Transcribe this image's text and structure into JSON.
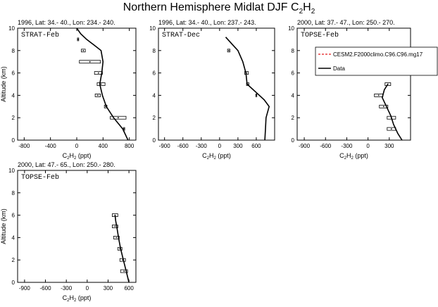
{
  "figure": {
    "title_main": "Northern Hemisphere Midlat DJF C",
    "title_sub1": "2",
    "title_mid": "H",
    "title_sub2": "2"
  },
  "legend": {
    "entries": [
      {
        "label": "CESM2.F2000climo.C96.C96.mg17",
        "color": "#e31a1c",
        "style": "dashed"
      },
      {
        "label": "Data",
        "color": "#000000",
        "style": "solid"
      }
    ]
  },
  "chart_data": [
    {
      "type": "line",
      "header": "1996, Lat: 34.- 40., Lon: 234.- 240.",
      "tag": "STRAT-Feb",
      "xlabel": "C2H2 (ppt)",
      "ylabel": "Altitude (km)",
      "xlim": [
        -900,
        900
      ],
      "ylim": [
        0,
        10
      ],
      "xticks": [
        -800,
        -400,
        0,
        400,
        800
      ],
      "yticks": [
        0,
        2,
        4,
        6,
        8,
        10
      ],
      "model": {
        "x": [
          780,
          700,
          560,
          450,
          390,
          350,
          380,
          400,
          370,
          260,
          150,
          60,
          0
        ],
        "y": [
          0,
          1,
          2,
          3,
          4,
          5,
          6,
          7,
          8,
          8.5,
          9,
          9.5,
          10
        ]
      },
      "obs": [
        {
          "y": 9.0,
          "x": 20,
          "err": 10
        },
        {
          "y": 8.0,
          "x": 100,
          "err": 30
        },
        {
          "y": 7.0,
          "x": 200,
          "err": 160
        },
        {
          "y": 6.0,
          "x": 330,
          "err": 60
        },
        {
          "y": 5.0,
          "x": 370,
          "err": 60
        },
        {
          "y": 4.0,
          "x": 320,
          "err": 40
        },
        {
          "y": 3.0,
          "x": 440,
          "err": 20
        },
        {
          "y": 2.0,
          "x": 630,
          "err": 120
        },
        {
          "y": 1.0,
          "x": 720,
          "err": 10
        }
      ]
    },
    {
      "type": "line",
      "header": "1996, Lat: 34.- 40., Lon: 237.- 243.",
      "tag": "STRAT-Dec",
      "xlabel": "C2H2 (ppt)",
      "ylabel": "",
      "xlim": [
        -1000,
        900
      ],
      "ylim": [
        0,
        10
      ],
      "xticks": [
        -900,
        -600,
        -300,
        0,
        300,
        600
      ],
      "yticks": [
        0,
        2,
        4,
        6,
        8,
        10
      ],
      "model": {
        "x": [
          740,
          750,
          760,
          810,
          730,
          610,
          450,
          430,
          380,
          300,
          200,
          100
        ],
        "y": [
          0,
          1,
          2,
          3,
          3.6,
          4.2,
          5,
          6,
          7,
          8,
          8.6,
          9.2
        ]
      },
      "obs": [
        {
          "y": 8.0,
          "x": 150,
          "err": 20
        },
        {
          "y": 6.0,
          "x": 440,
          "err": 30
        },
        {
          "y": 5.0,
          "x": 460,
          "err": 20
        },
        {
          "y": 4.0,
          "x": 600,
          "err": 8
        }
      ]
    },
    {
      "type": "line",
      "header": "2000, Lat: 37.- 47., Lon: 250.- 270.",
      "tag": "TOPSE-Feb",
      "xlabel": "C2H2 (ppt)",
      "ylabel": "",
      "xlim": [
        -1000,
        600
      ],
      "ylim": [
        0,
        10
      ],
      "xticks": [
        -900,
        -600,
        -300,
        0,
        300
      ],
      "yticks": [
        0,
        2,
        4,
        6,
        8,
        10
      ],
      "model": {
        "x": [
          480,
          420,
          360,
          320,
          260,
          200,
          230,
          280
        ],
        "y": [
          0,
          0.6,
          1.4,
          2.2,
          3.0,
          3.8,
          4.5,
          5.0
        ]
      },
      "obs": [
        {
          "y": 5.0,
          "x": 280,
          "err": 40
        },
        {
          "y": 4.0,
          "x": 150,
          "err": 60
        },
        {
          "y": 3.0,
          "x": 220,
          "err": 60
        },
        {
          "y": 2.0,
          "x": 330,
          "err": 60
        },
        {
          "y": 1.0,
          "x": 330,
          "err": 60
        }
      ]
    },
    {
      "type": "line",
      "header": "2000, Lat: 47.- 65., Lon: 250.- 280.",
      "tag": "TOPSE-Feb",
      "xlabel": "C2H2 (ppt)",
      "ylabel": "Altitude (km)",
      "xlim": [
        -1000,
        700
      ],
      "ylim": [
        0,
        10
      ],
      "xticks": [
        -900,
        -600,
        -300,
        0,
        300,
        600
      ],
      "yticks": [
        0,
        2,
        4,
        6,
        8,
        10
      ],
      "model": {
        "x": [
          600,
          560,
          520,
          480,
          450,
          430,
          410,
          400
        ],
        "y": [
          0,
          1,
          2,
          3,
          4,
          4.8,
          5.5,
          6.0
        ]
      },
      "obs": [
        {
          "y": 6.0,
          "x": 400,
          "err": 40
        },
        {
          "y": 5.0,
          "x": 400,
          "err": 40
        },
        {
          "y": 4.0,
          "x": 420,
          "err": 40
        },
        {
          "y": 3.0,
          "x": 470,
          "err": 30
        },
        {
          "y": 2.0,
          "x": 510,
          "err": 40
        },
        {
          "y": 1.0,
          "x": 530,
          "err": 50
        }
      ]
    }
  ]
}
